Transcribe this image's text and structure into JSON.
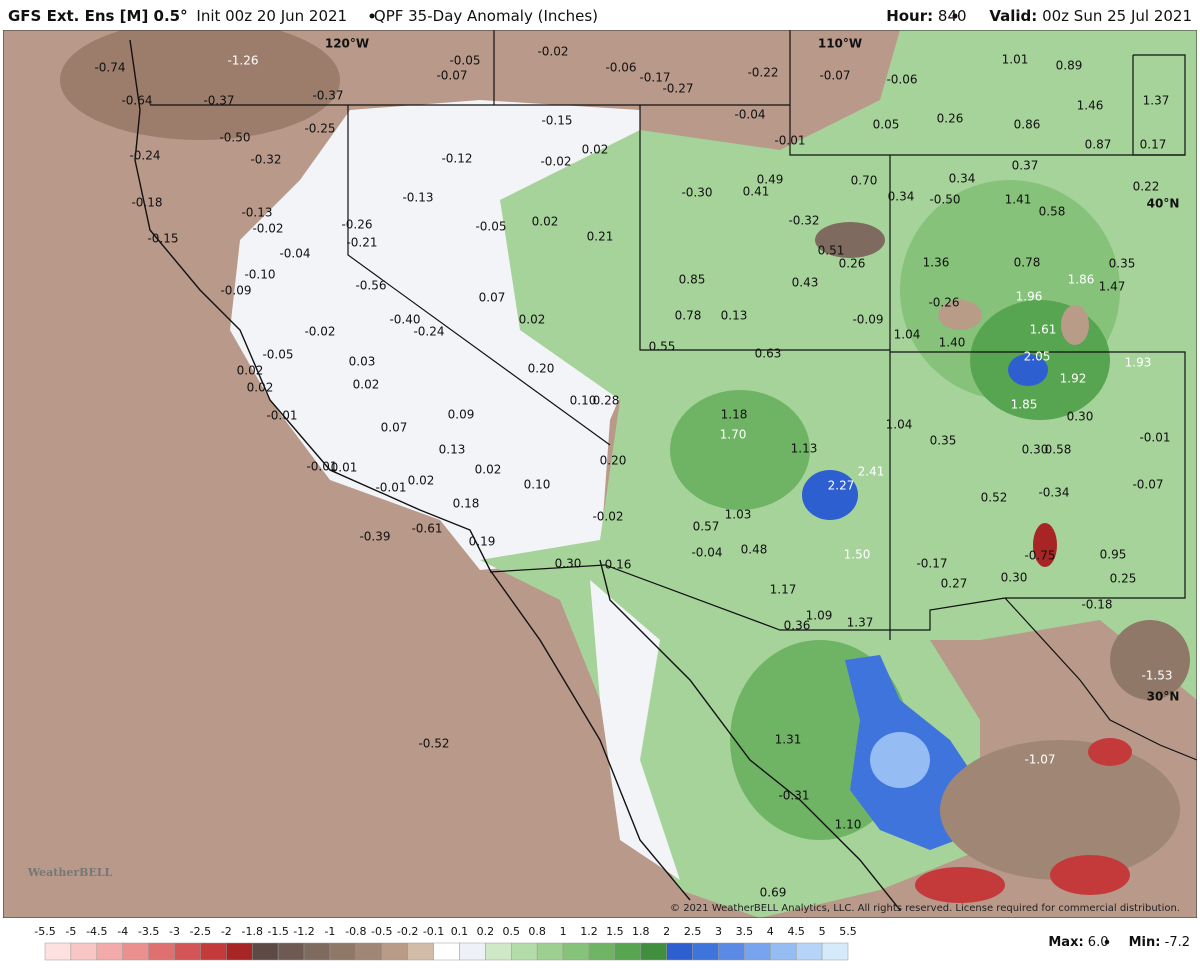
{
  "header": {
    "model": "GFS Ext.  Ens [M] 0.5°",
    "init": "Init 00z 20 Jun 2021",
    "product": "QPF 35-Day Anomaly (Inches)",
    "hour_label": "Hour:",
    "hour": "840",
    "valid_label": "Valid:",
    "valid": "00z Sun 25 Jul 2021"
  },
  "map": {
    "lon_labels": [
      "120°W",
      "110°W"
    ],
    "lat_labels": [
      "40°N",
      "30°N"
    ],
    "values": [
      "-0.74",
      "-1.26",
      "-0.05",
      "-0.07",
      "-0.02",
      "-0.06",
      "-0.17",
      "-0.27",
      "-0.22",
      "-0.07",
      "-0.06",
      "1.01",
      "0.89",
      "-0.64",
      "-0.37",
      "-0.37",
      "1.46",
      "1.37",
      "-0.25",
      "-0.15",
      "-0.04",
      "0.05",
      "0.26",
      "0.86",
      "-0.50",
      "-0.01",
      "0.87",
      "0.17",
      "-0.24",
      "-0.32",
      "-0.12",
      "-0.02",
      "0.02",
      "0.37",
      "0.49",
      "0.70",
      "0.34",
      "-0.30",
      "0.41",
      "0.34",
      "-0.50",
      "1.41",
      "0.22",
      "-0.18",
      "-0.13",
      "0.58",
      "-0.13",
      "-0.02",
      "-0.26",
      "0.02",
      "-0.05",
      "-0.32",
      "0.21",
      "-0.15",
      "-0.21",
      "-0.04",
      "0.51",
      "0.26",
      "1.36",
      "0.78",
      "0.35",
      "-0.10",
      "0.85",
      "0.43",
      "1.86",
      "1.47",
      "-0.56",
      "0.07",
      "-0.09",
      "1.96",
      "-0.26",
      "0.78",
      "0.13",
      "0.02",
      "-0.40",
      "-0.09",
      "-0.02",
      "-0.24",
      "1.04",
      "1.61",
      "1.40",
      "0.55",
      "0.63",
      "-0.05",
      "2.05",
      "1.93",
      "0.03",
      "0.20",
      "0.02",
      "1.92",
      "0.02",
      "0.02",
      "0.10",
      "0.28",
      "1.18",
      "1.85",
      "0.30",
      "-0.01",
      "0.09",
      "1.04",
      "0.07",
      "1.70",
      "0.35",
      "0.30",
      "0.58",
      "-0.01",
      "1.13",
      "0.13",
      "2.41",
      "0.20",
      "-0.01",
      "0.01",
      "0.02",
      "2.27",
      "0.10",
      "0.02",
      "-0.07",
      "-0.01",
      "-0.34",
      "0.52",
      "0.18",
      "1.03",
      "-0.02",
      "0.57",
      "-0.61",
      "-0.39",
      "0.19",
      "-0.04",
      "0.48",
      "1.50",
      "-0.75",
      "0.95",
      "-0.17",
      "0.30",
      "0.16",
      "0.27",
      "0.30",
      "0.25",
      "1.17",
      "-0.18",
      "1.09",
      "1.37",
      "0.36",
      "-1.53",
      "-1.07",
      "1.31",
      "-0.52",
      "-0.31",
      "1.10",
      "0.69"
    ]
  },
  "colorbar": {
    "ticks": [
      -5.5,
      -5,
      -4.5,
      -4,
      -3.5,
      -3,
      -2.5,
      -2,
      -1.8,
      -1.5,
      -1.2,
      -1,
      -0.8,
      -0.5,
      -0.2,
      -0.1,
      0.1,
      0.2,
      0.5,
      0.8,
      1,
      1.2,
      1.5,
      1.8,
      2,
      2.5,
      3,
      3.5,
      4,
      4.5,
      5,
      5.5
    ],
    "colors": [
      "#fde0e0",
      "#f9c6c6",
      "#f3aaaa",
      "#ec8f8f",
      "#e07070",
      "#d35555",
      "#c43a3a",
      "#a82525",
      "#5e4a45",
      "#6e5a52",
      "#7e6a5f",
      "#8f7868",
      "#a08674",
      "#b89c88",
      "#d2bca8",
      "#ffffff",
      "#eef2f8",
      "#cfe9c8",
      "#b4dca8",
      "#9dcf90",
      "#86c27a",
      "#6fb465",
      "#57a451",
      "#3f8f3f",
      "#2d5fd0",
      "#3f74dd",
      "#5a8ae6",
      "#78a3ee",
      "#96bcf4",
      "#b5d4f8",
      "#d5ebfc"
    ]
  },
  "footer": {
    "max_label": "Max:",
    "max": "6.0",
    "min_label": "Min:",
    "min": "-7.2"
  },
  "copyright": "© 2021 WeatherBELL Analytics, LLC. All rights reserved. License required for commercial distribution.",
  "logo": "WeatherBELL"
}
